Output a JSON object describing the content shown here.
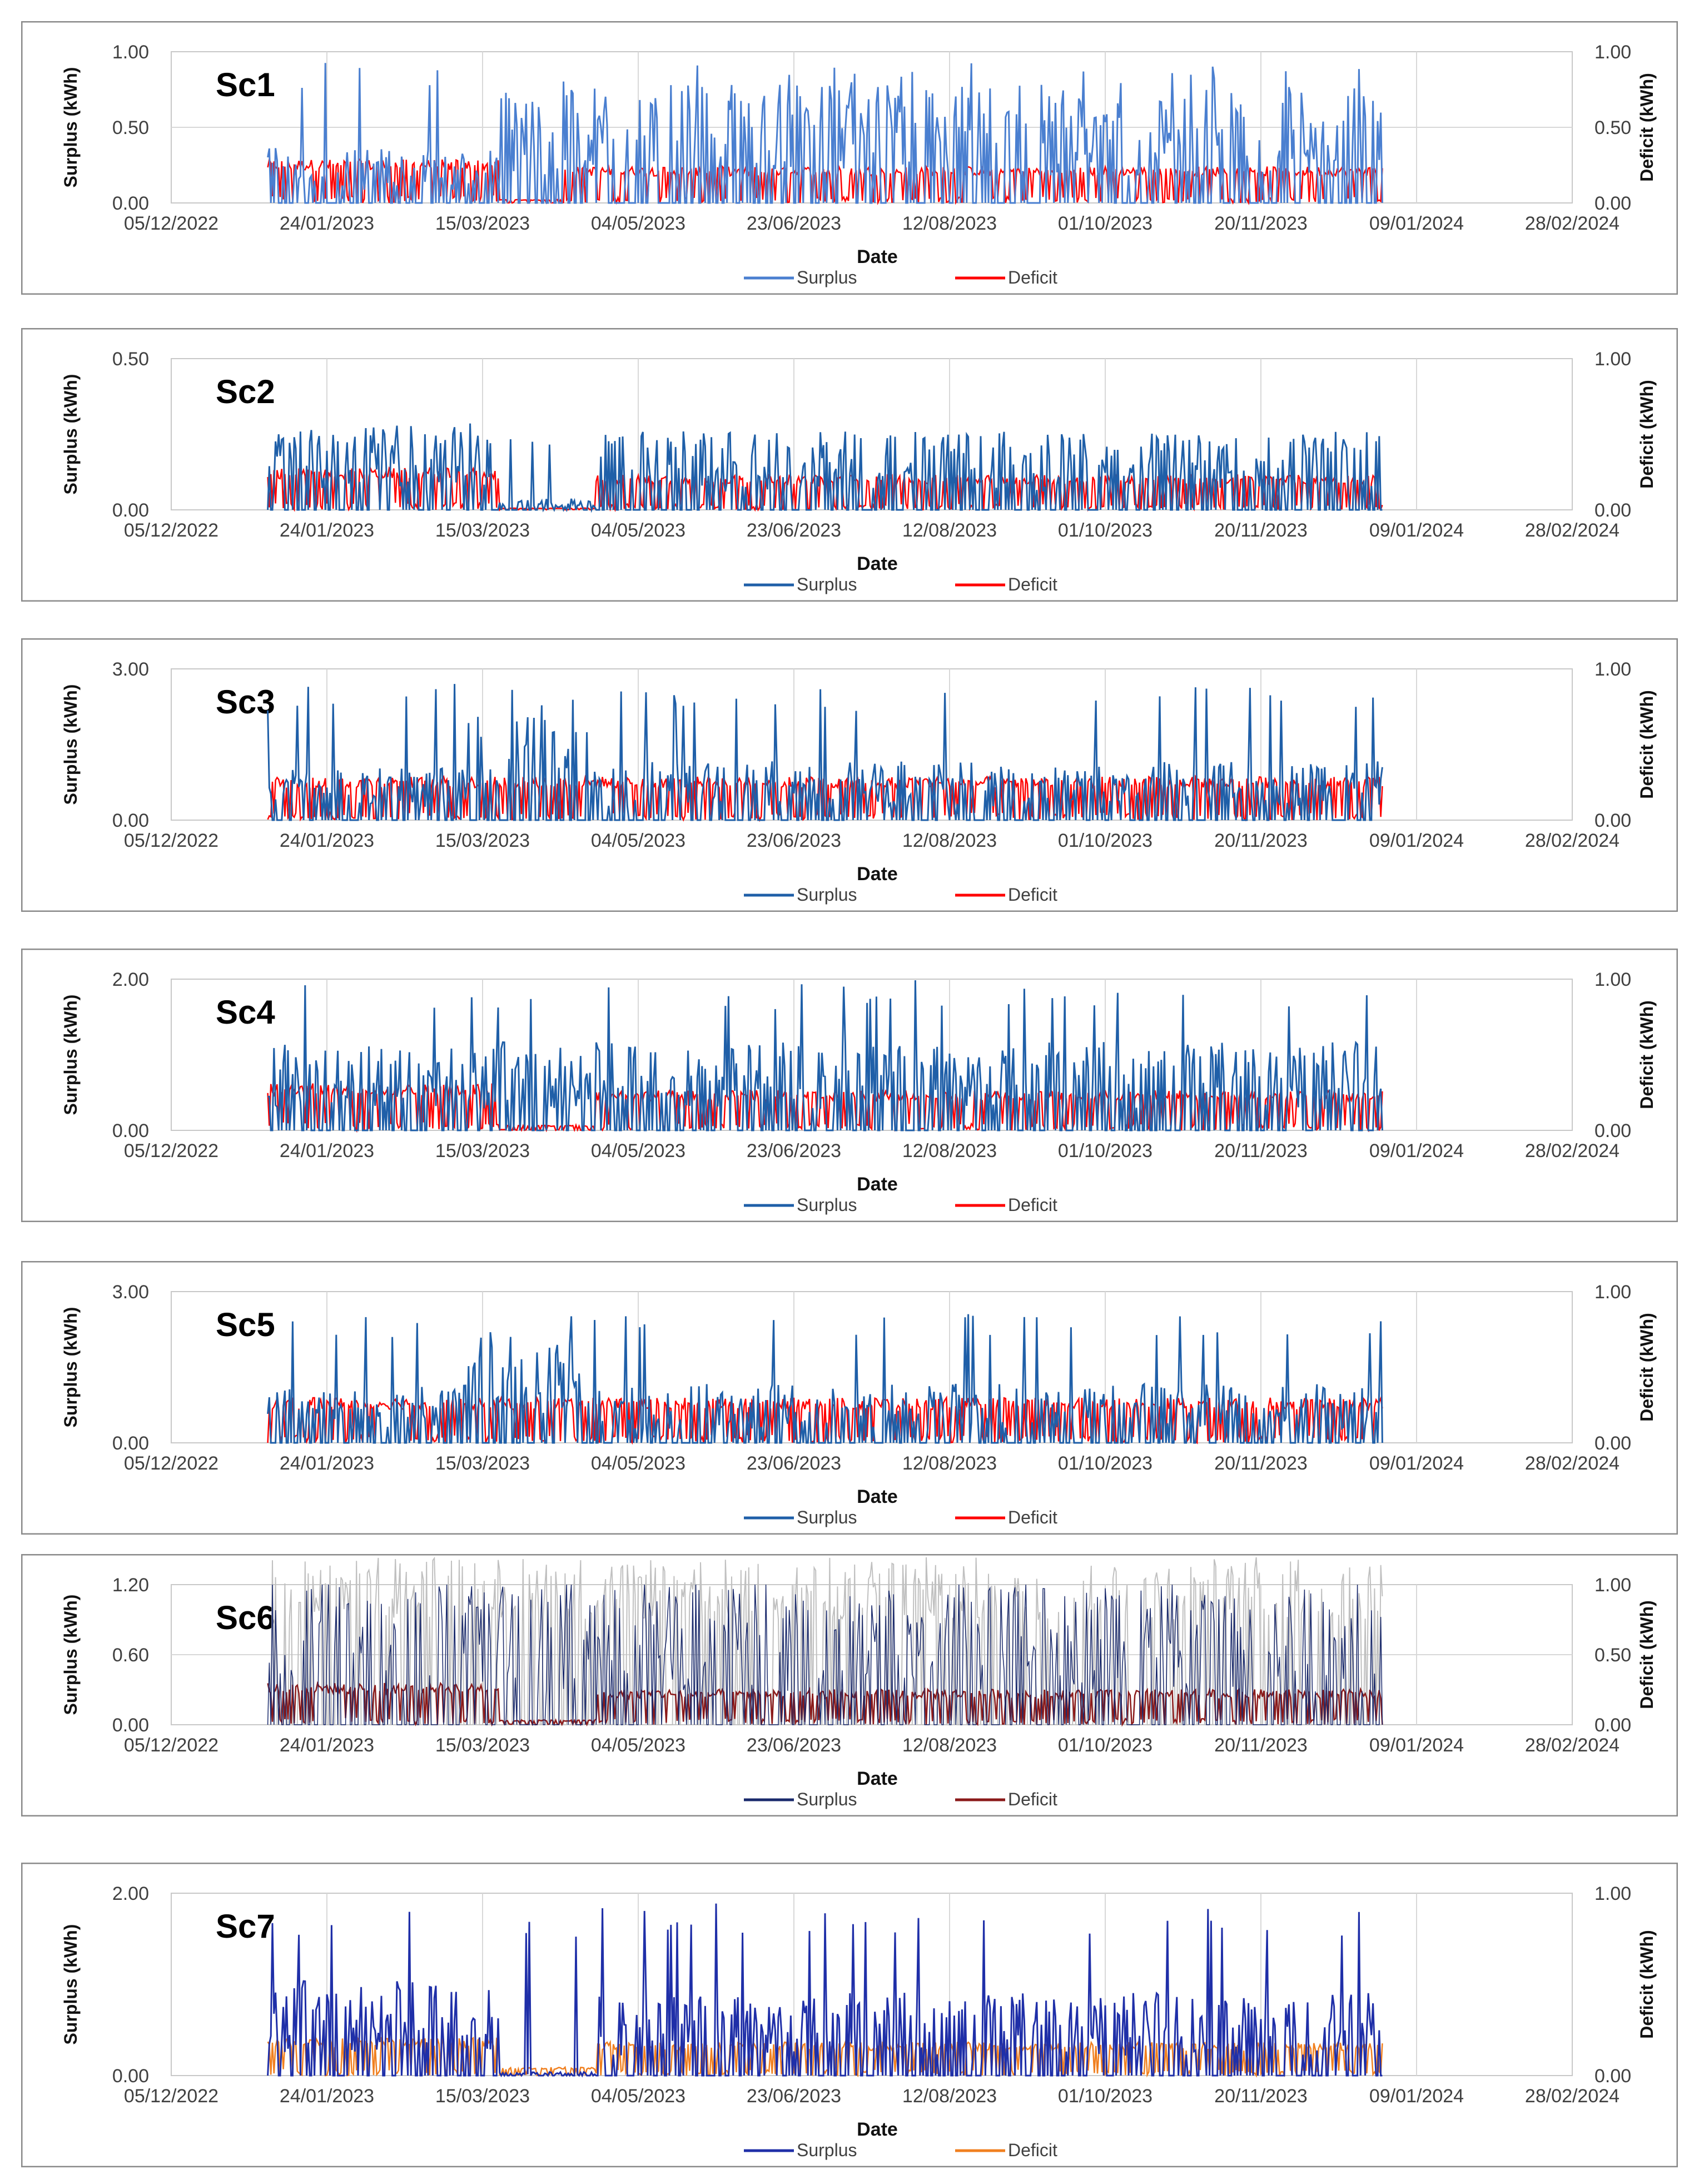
{
  "chart_data": [
    {
      "label": "Sc1",
      "type": "line",
      "xlabel": "Date",
      "ylabel": "Surplus (kWh)",
      "y2label": "Deficit (kWh)",
      "ylim": [
        0,
        1.0
      ],
      "y2lim": [
        0,
        1.0
      ],
      "yticks": [
        "0.00",
        "0.50",
        "1.00"
      ],
      "y2ticks": [
        "0.00",
        "0.50",
        "1.00"
      ],
      "xticks": [
        "05/12/2022",
        "24/01/2023",
        "15/03/2023",
        "04/05/2023",
        "23/06/2023",
        "12/08/2023",
        "01/10/2023",
        "20/11/2023",
        "09/01/2024",
        "28/02/2024"
      ],
      "data_range": [
        "05/01/2023",
        "29/12/2023"
      ],
      "legend": [
        "Surplus",
        "Deficit"
      ],
      "colors": [
        "#4a7fd0",
        "#ff0000"
      ],
      "series": [
        {
          "name": "Surplus",
          "segments": [
            {
              "from": "05/01/2023",
              "to": "20/03/2023",
              "level": 0.28
            },
            {
              "from": "20/03/2023",
              "to": "29/12/2023",
              "level": 0.6
            }
          ],
          "peak": 0.95
        },
        {
          "name": "Deficit",
          "segments": [
            {
              "from": "05/01/2023",
              "to": "20/03/2023",
              "level": 0.25
            },
            {
              "from": "20/03/2023",
              "to": "10/04/2023",
              "level": 0.02
            },
            {
              "from": "10/04/2023",
              "to": "29/12/2023",
              "level": 0.21
            }
          ]
        }
      ]
    },
    {
      "label": "Sc2",
      "type": "line",
      "xlabel": "Date",
      "ylabel": "Surplus (kWh)",
      "y2label": "Deficit (kWh)",
      "ylim": [
        0,
        0.5
      ],
      "y2lim": [
        0,
        1.0
      ],
      "yticks": [
        "0.00",
        "0.50"
      ],
      "y2ticks": [
        "0.00",
        "1.00"
      ],
      "xticks": [
        "05/12/2022",
        "24/01/2023",
        "15/03/2023",
        "04/05/2023",
        "23/06/2023",
        "12/08/2023",
        "01/10/2023",
        "20/11/2023",
        "09/01/2024",
        "28/02/2024"
      ],
      "data_range": [
        "05/01/2023",
        "29/12/2023"
      ],
      "legend": [
        "Surplus",
        "Deficit"
      ],
      "colors": [
        "#1f5fa8",
        "#ff0000"
      ],
      "series": [
        {
          "name": "Surplus",
          "segments": [
            {
              "from": "05/01/2023",
              "to": "20/03/2023",
              "level": 0.22
            },
            {
              "from": "20/03/2023",
              "to": "20/04/2023",
              "level": 0.03
            },
            {
              "from": "20/04/2023",
              "to": "29/12/2023",
              "level": 0.2
            }
          ],
          "peak": 0.25
        },
        {
          "name": "Deficit",
          "segments": [
            {
              "from": "05/01/2023",
              "to": "20/03/2023",
              "level": 0.24
            },
            {
              "from": "20/03/2023",
              "to": "20/04/2023",
              "level": 0.01
            },
            {
              "from": "20/04/2023",
              "to": "29/12/2023",
              "level": 0.2
            }
          ]
        }
      ]
    },
    {
      "label": "Sc3",
      "type": "line",
      "xlabel": "Date",
      "ylabel": "Surplus (kWh)",
      "y2label": "Deficit (kWh)",
      "ylim": [
        0,
        3.0
      ],
      "y2lim": [
        0,
        1.0
      ],
      "yticks": [
        "0.00",
        "3.00"
      ],
      "y2ticks": [
        "0.00",
        "1.00"
      ],
      "xticks": [
        "05/12/2022",
        "24/01/2023",
        "15/03/2023",
        "04/05/2023",
        "23/06/2023",
        "12/08/2023",
        "01/10/2023",
        "20/11/2023",
        "09/01/2024",
        "28/02/2024"
      ],
      "data_range": [
        "05/01/2023",
        "29/12/2023"
      ],
      "legend": [
        "Surplus",
        "Deficit"
      ],
      "colors": [
        "#1f5fa8",
        "#ff0000"
      ],
      "series": [
        {
          "name": "Surplus",
          "segments": [
            {
              "from": "05/01/2023",
              "to": "10/03/2023",
              "level": 0.8
            },
            {
              "from": "10/03/2023",
              "to": "20/04/2023",
              "level": 1.6
            },
            {
              "from": "20/04/2023",
              "to": "29/12/2023",
              "level": 0.9
            }
          ],
          "peak": 2.7
        },
        {
          "name": "Deficit",
          "segments": [
            {
              "from": "05/01/2023",
              "to": "29/12/2023",
              "level": 0.25
            }
          ]
        }
      ]
    },
    {
      "label": "Sc4",
      "type": "line",
      "xlabel": "Date",
      "ylabel": "Surplus (kWh)",
      "y2label": "Deficit (kWh)",
      "ylim": [
        0,
        2.0
      ],
      "y2lim": [
        0,
        1.0
      ],
      "yticks": [
        "0.00",
        "2.00"
      ],
      "y2ticks": [
        "0.00",
        "1.00"
      ],
      "xticks": [
        "05/12/2022",
        "24/01/2023",
        "15/03/2023",
        "04/05/2023",
        "23/06/2023",
        "12/08/2023",
        "01/10/2023",
        "20/11/2023",
        "09/01/2024",
        "28/02/2024"
      ],
      "data_range": [
        "05/01/2023",
        "29/12/2023"
      ],
      "legend": [
        "Surplus",
        "Deficit"
      ],
      "colors": [
        "#1f5fa8",
        "#ff0000"
      ],
      "series": [
        {
          "name": "Surplus",
          "segments": [
            {
              "from": "05/01/2023",
              "to": "29/12/2023",
              "level": 0.9
            }
          ],
          "peak": 2.0
        },
        {
          "name": "Deficit",
          "segments": [
            {
              "from": "05/01/2023",
              "to": "20/03/2023",
              "level": 0.27
            },
            {
              "from": "20/03/2023",
              "to": "20/04/2023",
              "level": 0.03
            },
            {
              "from": "20/04/2023",
              "to": "29/12/2023",
              "level": 0.23
            }
          ]
        }
      ]
    },
    {
      "label": "Sc5",
      "type": "line",
      "xlabel": "Date",
      "ylabel": "Surplus (kWh)",
      "y2label": "Deficit (kWh)",
      "ylim": [
        0,
        3.0
      ],
      "y2lim": [
        0,
        1.0
      ],
      "yticks": [
        "0.00",
        "3.00"
      ],
      "y2ticks": [
        "0.00",
        "1.00"
      ],
      "xticks": [
        "05/12/2022",
        "24/01/2023",
        "15/03/2023",
        "04/05/2023",
        "23/06/2023",
        "12/08/2023",
        "01/10/2023",
        "20/11/2023",
        "09/01/2024",
        "28/02/2024"
      ],
      "data_range": [
        "05/01/2023",
        "29/12/2023"
      ],
      "legend": [
        "Surplus",
        "Deficit"
      ],
      "colors": [
        "#1f5fa8",
        "#ff0000"
      ],
      "series": [
        {
          "name": "Surplus",
          "segments": [
            {
              "from": "05/01/2023",
              "to": "10/03/2023",
              "level": 0.9
            },
            {
              "from": "10/03/2023",
              "to": "20/04/2023",
              "level": 1.6
            },
            {
              "from": "20/04/2023",
              "to": "29/12/2023",
              "level": 0.9
            }
          ],
          "peak": 2.6
        },
        {
          "name": "Deficit",
          "segments": [
            {
              "from": "05/01/2023",
              "to": "29/12/2023",
              "level": 0.26
            }
          ]
        }
      ]
    },
    {
      "label": "Sc6",
      "type": "line",
      "xlabel": "Date",
      "ylabel": "Surplus (kWh)",
      "y2label": "Deficit (kWh)",
      "ylim": [
        0,
        1.2
      ],
      "y2lim": [
        0,
        1.0
      ],
      "yticks": [
        "0.00",
        "0.60",
        "1.20"
      ],
      "y2ticks": [
        "0.00",
        "0.50",
        "1.00"
      ],
      "xticks": [
        "05/12/2022",
        "24/01/2023",
        "15/03/2023",
        "04/05/2023",
        "23/06/2023",
        "12/08/2023",
        "01/10/2023",
        "20/11/2023",
        "09/01/2024",
        "28/02/2024"
      ],
      "data_range": [
        "05/01/2023",
        "29/12/2023"
      ],
      "legend": [
        "Surplus",
        "Deficit"
      ],
      "colors": [
        "#1a2a6c",
        "#8b1a1a",
        "#c0c0c0"
      ],
      "series": [
        {
          "name": "Surplus",
          "segments": [
            {
              "from": "05/01/2023",
              "to": "29/12/2023",
              "level": 0.95
            }
          ],
          "peak": 1.2
        },
        {
          "name": "Deficit",
          "segments": [
            {
              "from": "05/01/2023",
              "to": "20/03/2023",
              "level": 0.26
            },
            {
              "from": "20/03/2023",
              "to": "20/04/2023",
              "level": 0.03
            },
            {
              "from": "20/04/2023",
              "to": "29/12/2023",
              "level": 0.22
            }
          ]
        }
      ]
    },
    {
      "label": "Sc7",
      "type": "line",
      "xlabel": "Date",
      "ylabel": "Surplus (kWh)",
      "y2label": "Deficit (kWh)",
      "ylim": [
        0,
        2.0
      ],
      "y2lim": [
        0,
        1.0
      ],
      "yticks": [
        "0.00",
        "2.00"
      ],
      "y2ticks": [
        "0.00",
        "1.00"
      ],
      "xticks": [
        "05/12/2022",
        "24/01/2023",
        "15/03/2023",
        "04/05/2023",
        "23/06/2023",
        "12/08/2023",
        "01/10/2023",
        "20/11/2023",
        "09/01/2024",
        "28/02/2024"
      ],
      "data_range": [
        "05/01/2023",
        "29/12/2023"
      ],
      "legend": [
        "Surplus",
        "Deficit"
      ],
      "colors": [
        "#1f2fa8",
        "#f08020"
      ],
      "series": [
        {
          "name": "Surplus",
          "segments": [
            {
              "from": "05/01/2023",
              "to": "20/03/2023",
              "level": 0.8
            },
            {
              "from": "20/03/2023",
              "to": "20/04/2023",
              "level": 0.03
            },
            {
              "from": "20/04/2023",
              "to": "29/12/2023",
              "level": 0.7
            }
          ],
          "peak": 1.9
        },
        {
          "name": "Deficit",
          "segments": [
            {
              "from": "05/01/2023",
              "to": "20/03/2023",
              "level": 0.18
            },
            {
              "from": "20/03/2023",
              "to": "20/04/2023",
              "level": 0.04
            },
            {
              "from": "20/04/2023",
              "to": "29/12/2023",
              "level": 0.16
            }
          ]
        }
      ]
    }
  ]
}
